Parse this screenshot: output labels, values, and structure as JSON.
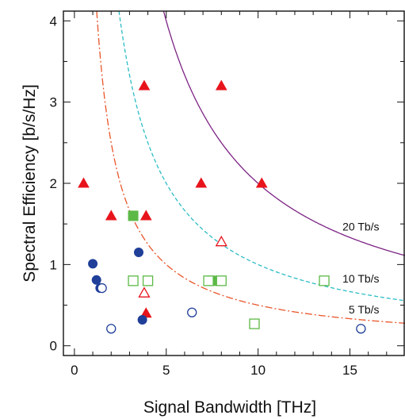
{
  "chart_data": {
    "type": "scatter",
    "title": "",
    "xlabel": "Signal Bandwidth [THz]",
    "ylabel": "Spectral Efficiency [b/s/Hz]",
    "xlim": [
      -0.6,
      18
    ],
    "ylim": [
      -0.12,
      4.12
    ],
    "xticks": [
      0,
      5,
      10,
      15
    ],
    "yticks": [
      0,
      1,
      2,
      3,
      4
    ],
    "grid": false,
    "colors": {
      "filled_triangle": "#e8141c",
      "open_triangle": "#e8141c",
      "filled_square": "#5cb946",
      "open_square": "#5cb946",
      "filled_circle": "#1f3f99",
      "open_circle": "#1f3f99",
      "curve_5tbs": "#e8552a",
      "curve_10tbs": "#2bbcc4",
      "curve_20tbs": "#7d2384"
    },
    "curves": [
      {
        "label": "5 Tb/s",
        "capacity": 5,
        "style": "dash-dot",
        "color_key": "curve_5tbs"
      },
      {
        "label": "10 Tb/s",
        "capacity": 10,
        "style": "dashed",
        "color_key": "curve_10tbs"
      },
      {
        "label": "20 Tb/s",
        "capacity": 20,
        "style": "solid",
        "color_key": "curve_20tbs"
      }
    ],
    "series": [
      {
        "marker": "filled-triangle",
        "color_key": "filled_triangle",
        "points": [
          [
            0.5,
            2.0
          ],
          [
            2.0,
            1.6
          ],
          [
            3.8,
            3.2
          ],
          [
            3.9,
            1.6
          ],
          [
            3.9,
            0.4
          ],
          [
            6.9,
            2.0
          ],
          [
            8.0,
            3.2
          ],
          [
            10.2,
            2.0
          ]
        ]
      },
      {
        "marker": "open-triangle",
        "color_key": "open_triangle",
        "points": [
          [
            3.8,
            0.65
          ],
          [
            8.0,
            1.28
          ]
        ]
      },
      {
        "marker": "filled-square",
        "color_key": "filled_square",
        "points": [
          [
            3.2,
            1.6
          ],
          [
            7.5,
            0.8
          ]
        ]
      },
      {
        "marker": "open-square",
        "color_key": "open_square",
        "points": [
          [
            3.2,
            0.8
          ],
          [
            4.0,
            0.8
          ],
          [
            7.3,
            0.8
          ],
          [
            8.0,
            0.8
          ],
          [
            9.8,
            0.27
          ],
          [
            13.6,
            0.8
          ]
        ]
      },
      {
        "marker": "filled-circle",
        "color_key": "filled_circle",
        "points": [
          [
            1.0,
            1.01
          ],
          [
            1.2,
            0.81
          ],
          [
            1.4,
            0.71
          ],
          [
            3.5,
            1.15
          ],
          [
            3.7,
            0.32
          ]
        ]
      },
      {
        "marker": "open-circle",
        "color_key": "open_circle",
        "points": [
          [
            1.5,
            0.71
          ],
          [
            2.0,
            0.21
          ],
          [
            6.4,
            0.41
          ],
          [
            15.6,
            0.21
          ]
        ]
      }
    ]
  }
}
